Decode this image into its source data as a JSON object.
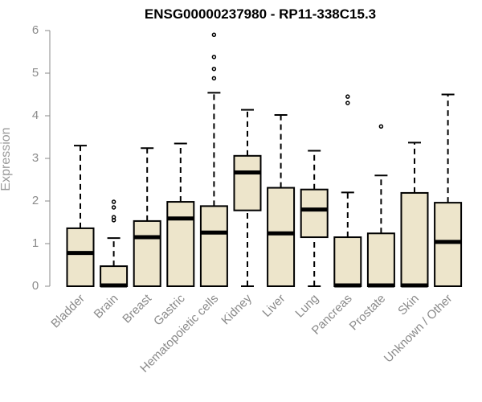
{
  "chart_data": {
    "type": "box",
    "title": "ENSG00000237980 - RP11-338C15.3",
    "ylabel": "Expression",
    "xlabel": "",
    "ylim": [
      0,
      6
    ],
    "yticks": [
      "0",
      "1",
      "2",
      "3",
      "4",
      "5",
      "6"
    ],
    "grid": false,
    "box_color": "#ede5cb",
    "categories": [
      "Bladder",
      "Brain",
      "Breast",
      "Gastric",
      "Hematopoietic cells",
      "Kidney",
      "Liver",
      "Lung",
      "Pancreas",
      "Prostate",
      "Skin",
      "Unknown / Other"
    ],
    "boxes": [
      {
        "whisker_low": 0,
        "q1": 0,
        "median": 0.78,
        "q3": 1.36,
        "whisker_high": 3.3,
        "outliers": []
      },
      {
        "whisker_low": 0,
        "q1": 0,
        "median": 0.02,
        "q3": 0.47,
        "whisker_high": 1.13,
        "outliers": [
          1.55,
          1.62,
          1.85,
          1.98
        ]
      },
      {
        "whisker_low": 0,
        "q1": 0,
        "median": 1.15,
        "q3": 1.53,
        "whisker_high": 3.24,
        "outliers": []
      },
      {
        "whisker_low": 0,
        "q1": 0,
        "median": 1.59,
        "q3": 1.98,
        "whisker_high": 3.35,
        "outliers": []
      },
      {
        "whisker_low": 0,
        "q1": 0,
        "median": 1.26,
        "q3": 1.88,
        "whisker_high": 4.54,
        "outliers": [
          4.88,
          5.1,
          5.38,
          5.9
        ]
      },
      {
        "whisker_low": 0,
        "q1": 1.78,
        "median": 2.67,
        "q3": 3.06,
        "whisker_high": 4.14,
        "outliers": []
      },
      {
        "whisker_low": 0,
        "q1": 0,
        "median": 1.24,
        "q3": 2.31,
        "whisker_high": 4.02,
        "outliers": []
      },
      {
        "whisker_low": 0,
        "q1": 1.15,
        "median": 1.8,
        "q3": 2.27,
        "whisker_high": 3.18,
        "outliers": []
      },
      {
        "whisker_low": 0,
        "q1": 0,
        "median": 0.02,
        "q3": 1.15,
        "whisker_high": 2.2,
        "outliers": [
          4.3,
          4.45
        ]
      },
      {
        "whisker_low": 0,
        "q1": 0,
        "median": 0.02,
        "q3": 1.24,
        "whisker_high": 2.6,
        "outliers": [
          3.75
        ]
      },
      {
        "whisker_low": 0,
        "q1": 0,
        "median": 0.02,
        "q3": 2.19,
        "whisker_high": 3.37,
        "outliers": []
      },
      {
        "whisker_low": 0,
        "q1": 0,
        "median": 1.04,
        "q3": 1.96,
        "whisker_high": 4.5,
        "outliers": []
      }
    ]
  }
}
